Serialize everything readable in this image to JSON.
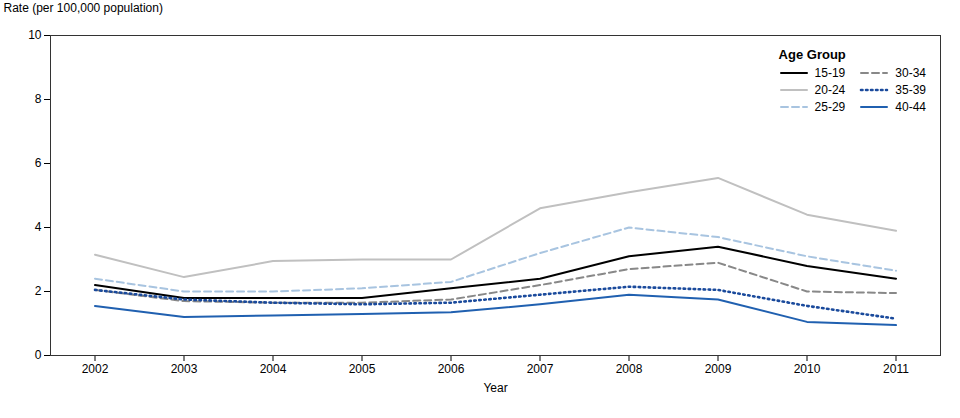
{
  "chart_data": {
    "type": "line",
    "x": [
      2002,
      2003,
      2004,
      2005,
      2006,
      2007,
      2008,
      2009,
      2010,
      2011
    ],
    "xlabel": "Year",
    "ylabel": "Rate (per 100,000 population)",
    "xlim": [
      2001.5,
      2011.5
    ],
    "xticks": [
      2002,
      2003,
      2004,
      2005,
      2006,
      2007,
      2008,
      2009,
      2010,
      2011
    ],
    "ylim": [
      0,
      10
    ],
    "yticks": [
      0,
      2,
      4,
      6,
      8,
      10
    ],
    "grid": false,
    "legend": "upper right",
    "legend_title": "Age Group",
    "series": [
      {
        "name": "15-19",
        "color": "#000000",
        "line_style": "solid",
        "values": [
          2.2,
          1.8,
          1.8,
          1.8,
          2.1,
          2.4,
          3.1,
          3.4,
          2.8,
          2.4
        ]
      },
      {
        "name": "20-24",
        "color": "#c0c0c0",
        "line_style": "solid",
        "values": [
          3.15,
          2.45,
          2.95,
          3.0,
          3.0,
          4.6,
          5.1,
          5.55,
          4.4,
          3.9
        ]
      },
      {
        "name": "25-29",
        "color": "#a8c4e0",
        "line_style": "dashed",
        "values": [
          2.4,
          2.0,
          2.0,
          2.1,
          2.3,
          3.2,
          4.0,
          3.7,
          3.1,
          2.65
        ]
      },
      {
        "name": "30-34",
        "color": "#888888",
        "line_style": "dashed",
        "values": [
          2.05,
          1.7,
          1.65,
          1.65,
          1.75,
          2.2,
          2.7,
          2.9,
          2.0,
          1.95
        ]
      },
      {
        "name": "35-39",
        "color": "#1a4a9c",
        "line_style": "dotted",
        "values": [
          2.05,
          1.75,
          1.65,
          1.6,
          1.65,
          1.9,
          2.15,
          2.05,
          1.55,
          1.15
        ]
      },
      {
        "name": "40-44",
        "color": "#2060b0",
        "line_style": "solid",
        "values": [
          1.55,
          1.2,
          1.25,
          1.3,
          1.35,
          1.6,
          1.9,
          1.75,
          1.05,
          0.95
        ]
      }
    ]
  }
}
